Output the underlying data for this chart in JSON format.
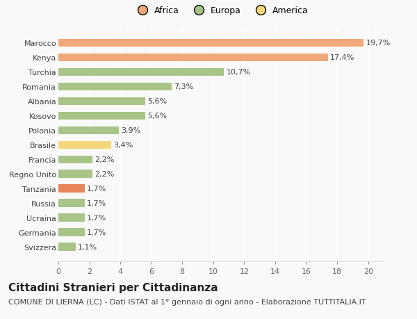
{
  "categories": [
    "Svizzera",
    "Germania",
    "Ucraina",
    "Russia",
    "Tanzania",
    "Regno Unito",
    "Francia",
    "Brasile",
    "Polonia",
    "Kosovo",
    "Albania",
    "Romania",
    "Turchia",
    "Kenya",
    "Marocco"
  ],
  "values": [
    1.1,
    1.7,
    1.7,
    1.7,
    1.7,
    2.2,
    2.2,
    3.4,
    3.9,
    5.6,
    5.6,
    7.3,
    10.7,
    17.4,
    19.7
  ],
  "labels": [
    "1,1%",
    "1,7%",
    "1,7%",
    "1,7%",
    "1,7%",
    "2,2%",
    "2,2%",
    "3,4%",
    "3,9%",
    "5,6%",
    "5,6%",
    "7,3%",
    "10,7%",
    "17,4%",
    "19,7%"
  ],
  "colors": [
    "#a8c487",
    "#a8c487",
    "#a8c487",
    "#a8c487",
    "#e8855a",
    "#a8c487",
    "#a8c487",
    "#f5d67a",
    "#a8c487",
    "#a8c487",
    "#a8c487",
    "#a8c487",
    "#a8c487",
    "#f0a878",
    "#f0a878"
  ],
  "legend": [
    {
      "label": "Africa",
      "color": "#f0a878"
    },
    {
      "label": "Europa",
      "color": "#a8c487"
    },
    {
      "label": "America",
      "color": "#f5d67a"
    }
  ],
  "xlim": [
    0,
    21
  ],
  "xticks": [
    0,
    2,
    4,
    6,
    8,
    10,
    12,
    14,
    16,
    18,
    20
  ],
  "title": "Cittadini Stranieri per Cittadinanza",
  "subtitle": "COMUNE DI LIERNA (LC) - Dati ISTAT al 1° gennaio di ogni anno - Elaborazione TUTTITALIA.IT",
  "background_color": "#f9f9f9",
  "bar_height": 0.55,
  "title_fontsize": 11,
  "subtitle_fontsize": 8,
  "label_fontsize": 8,
  "tick_fontsize": 8,
  "legend_fontsize": 9
}
